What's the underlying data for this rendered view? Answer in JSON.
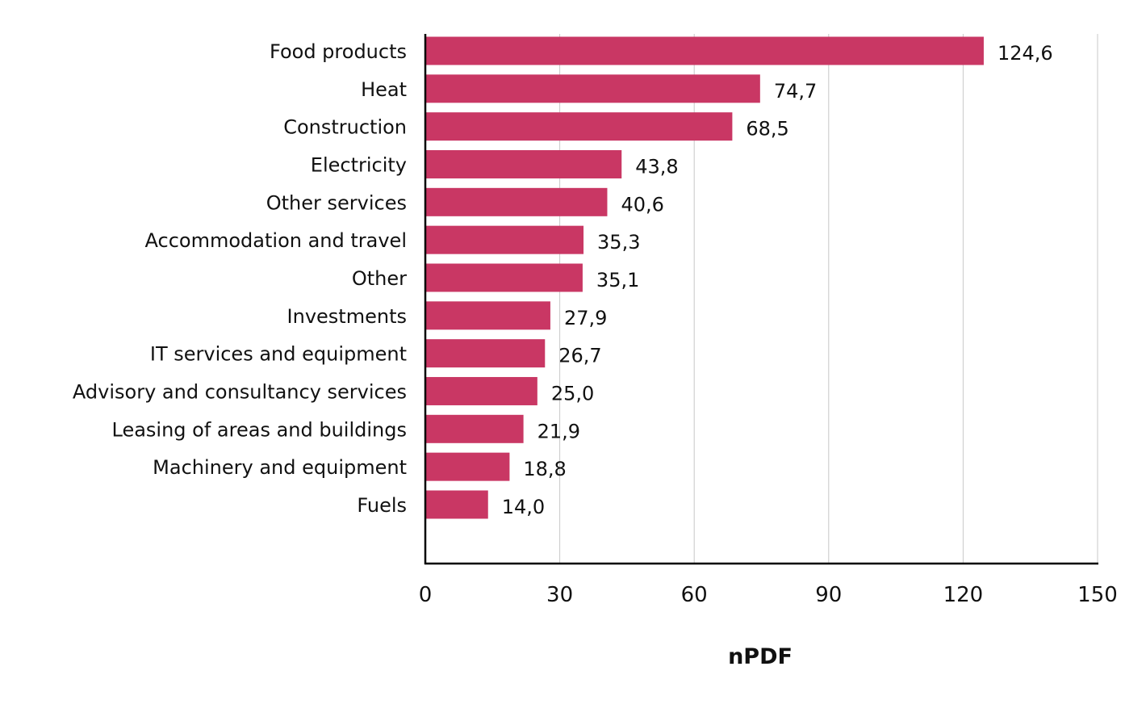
{
  "chart_data": {
    "type": "bar",
    "orientation": "horizontal",
    "title": "",
    "xlabel": "nPDF",
    "ylabel": "",
    "categories": [
      "Food products",
      "Heat",
      "Construction",
      "Electricity",
      "Other services",
      "Accommodation and travel",
      "Other",
      "Investments",
      "IT services and equipment",
      "Advisory and consultancy services",
      "Leasing of areas and buildings",
      "Machinery and equipment",
      "Fuels"
    ],
    "values": [
      124.6,
      74.7,
      68.5,
      43.8,
      40.6,
      35.3,
      35.1,
      27.9,
      26.7,
      25.0,
      21.9,
      18.8,
      14.0
    ],
    "value_labels": [
      "124,6",
      "74,7",
      "68,5",
      "43,8",
      "40,6",
      "35,3",
      "35,1",
      "27,9",
      "26,7",
      "25,0",
      "21,9",
      "18,8",
      "14,0"
    ],
    "xlim": [
      0,
      150
    ],
    "xticks": [
      0,
      30,
      60,
      90,
      120,
      150
    ],
    "xtick_labels": [
      "0",
      "30",
      "60",
      "90",
      "120",
      "150"
    ],
    "grid": true,
    "bar_color": "#C93764"
  }
}
